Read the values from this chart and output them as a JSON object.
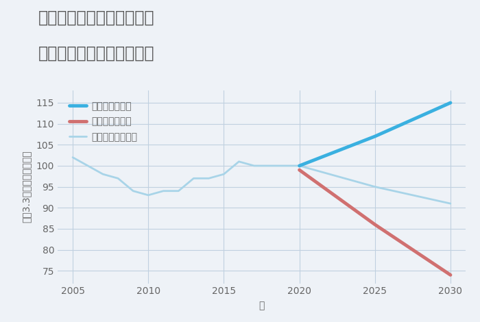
{
  "title_line1": "三重県伊賀市希望ヶ丘東の",
  "title_line2": "中古マンションの価格推移",
  "xlabel": "年",
  "ylabel": "坪（3.3㎡）単価（万円）",
  "background_color": "#eef2f7",
  "plot_background": "#eef2f7",
  "normal_scenario": {
    "x": [
      2005,
      2006,
      2007,
      2008,
      2009,
      2010,
      2011,
      2012,
      2013,
      2014,
      2015,
      2016,
      2017,
      2018,
      2019,
      2020,
      2025,
      2030
    ],
    "y": [
      102,
      100,
      98,
      97,
      94,
      93,
      94,
      94,
      97,
      97,
      98,
      101,
      100,
      100,
      100,
      100,
      95,
      91
    ],
    "color": "#a8d4e8",
    "linewidth": 2.0,
    "label": "ノーマルシナリオ"
  },
  "good_scenario": {
    "x": [
      2020,
      2025,
      2030
    ],
    "y": [
      100,
      107,
      115
    ],
    "color": "#3ab0e0",
    "linewidth": 3.5,
    "label": "グッドシナリオ"
  },
  "bad_scenario": {
    "x": [
      2020,
      2025,
      2030
    ],
    "y": [
      99,
      86,
      74
    ],
    "color": "#d07070",
    "linewidth": 3.5,
    "label": "バッドシナリオ"
  },
  "xlim": [
    2004.0,
    2031.0
  ],
  "ylim": [
    72,
    118
  ],
  "xticks": [
    2005,
    2010,
    2015,
    2020,
    2025,
    2030
  ],
  "yticks": [
    75,
    80,
    85,
    90,
    95,
    100,
    105,
    110,
    115
  ],
  "grid_color": "#c0d0e0",
  "title_color": "#555555",
  "tick_color": "#666666",
  "title_fontsize": 17,
  "label_fontsize": 10
}
